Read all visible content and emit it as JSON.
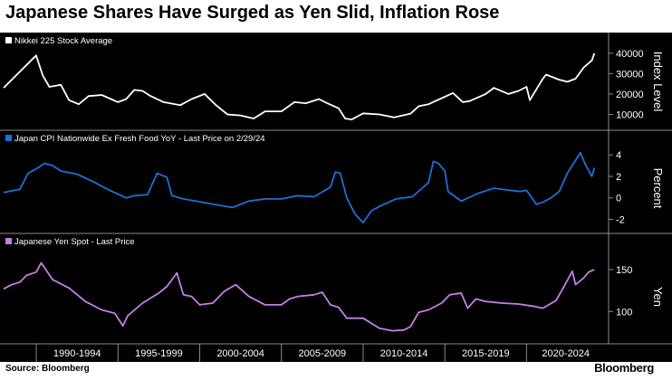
{
  "title": "Japanese Shares Have Surged as Yen Slid, Inflation Rose",
  "source": "Source: Bloomberg",
  "brand": "Bloomberg",
  "colors": {
    "background": "#000000",
    "nikkei": "#ffffff",
    "cpi": "#1f6fd6",
    "yen": "#c77de8",
    "text": "#ffffff",
    "divider": "#8a8a8a"
  },
  "chart_data": [
    {
      "type": "line",
      "legend": "Nikkei 225 Stock Average",
      "ylabel": "Index Level",
      "yticks": [
        10000,
        20000,
        30000,
        40000
      ],
      "ylim": [
        4000,
        43000
      ],
      "x": [
        1988.0,
        1989.0,
        1989.99,
        1990.4,
        1990.8,
        1991.5,
        1992.0,
        1992.6,
        1993.2,
        1994.0,
        1995.0,
        1995.5,
        1996.0,
        1996.5,
        1997.0,
        1997.8,
        1998.8,
        1999.5,
        2000.3,
        2001.0,
        2001.7,
        2002.5,
        2003.3,
        2004.0,
        2005.0,
        2005.8,
        2006.5,
        2007.3,
        2007.8,
        2008.5,
        2008.9,
        2009.3,
        2010.0,
        2011.0,
        2011.9,
        2012.9,
        2013.4,
        2014.0,
        2015.5,
        2016.1,
        2016.5,
        2017.5,
        2018.0,
        2018.9,
        2019.5,
        2020.0,
        2020.2,
        2021.0,
        2021.2,
        2022.0,
        2022.5,
        2023.0,
        2023.5,
        2024.0,
        2024.15
      ],
      "y": [
        23000,
        31000,
        38900,
        29000,
        23500,
        24500,
        17000,
        15000,
        19000,
        19500,
        16000,
        17500,
        22000,
        21500,
        19000,
        16000,
        14500,
        17500,
        20000,
        14500,
        10000,
        9500,
        8000,
        11500,
        11500,
        16000,
        15500,
        17500,
        15500,
        13000,
        8000,
        7500,
        10500,
        10000,
        8500,
        10400,
        14000,
        15000,
        20500,
        16000,
        16500,
        20000,
        23000,
        20000,
        21500,
        23500,
        17000,
        27500,
        29500,
        27000,
        26000,
        27500,
        33000,
        36500,
        40000
      ]
    },
    {
      "type": "line",
      "legend": "Japan CPI Nationwide Ex Fresh Food YoY - Last Price on 2/29/24",
      "ylabel": "Percent",
      "yticks": [
        -2,
        0,
        2,
        4
      ],
      "ylim": [
        -2.8,
        4.6
      ],
      "x": [
        1988.0,
        1989.0,
        1989.5,
        1990.0,
        1990.5,
        1991.0,
        1991.5,
        1992.5,
        1993.5,
        1994.5,
        1995.5,
        1996.0,
        1996.8,
        1997.4,
        1998.0,
        1998.3,
        1999.0,
        2000.5,
        2002.0,
        2003.0,
        2004.0,
        2005.0,
        2006.0,
        2007.0,
        2008.0,
        2008.3,
        2008.6,
        2009.0,
        2009.5,
        2010.0,
        2010.5,
        2011.0,
        2012.0,
        2013.0,
        2014.0,
        2014.3,
        2014.6,
        2015.0,
        2015.2,
        2016.0,
        2017.0,
        2018.0,
        2019.0,
        2019.6,
        2020.0,
        2020.6,
        2021.0,
        2021.5,
        2022.0,
        2022.5,
        2023.0,
        2023.3,
        2023.6,
        2024.0,
        2024.15
      ],
      "y": [
        0.5,
        0.8,
        2.3,
        2.7,
        3.2,
        3.0,
        2.5,
        2.2,
        1.5,
        0.7,
        0.0,
        0.2,
        0.3,
        2.3,
        1.9,
        0.2,
        -0.1,
        -0.5,
        -0.9,
        -0.3,
        -0.1,
        -0.1,
        0.2,
        0.1,
        1.0,
        2.4,
        2.3,
        0.0,
        -1.5,
        -2.3,
        -1.2,
        -0.8,
        -0.1,
        0.1,
        1.4,
        3.4,
        3.2,
        2.5,
        0.6,
        -0.3,
        0.4,
        0.9,
        0.7,
        0.6,
        0.7,
        -0.6,
        -0.4,
        0.0,
        0.6,
        2.3,
        3.5,
        4.2,
        3.1,
        2.0,
        2.8
      ]
    },
    {
      "type": "line",
      "legend": "Japanese Yen Spot - Last Price",
      "ylabel": "Yen",
      "yticks": [
        100,
        150
      ],
      "ylim": [
        68,
        165
      ],
      "x": [
        1988.0,
        1988.5,
        1989.0,
        1989.4,
        1990.0,
        1990.3,
        1991.0,
        1992.0,
        1993.0,
        1994.0,
        1994.8,
        1995.3,
        1995.6,
        1996.5,
        1997.5,
        1998.0,
        1998.6,
        1999.0,
        1999.5,
        2000.0,
        2000.8,
        2001.5,
        2002.2,
        2003.0,
        2004.0,
        2005.0,
        2005.5,
        2006.0,
        2007.0,
        2007.5,
        2008.0,
        2008.5,
        2009.0,
        2010.0,
        2011.0,
        2011.8,
        2012.5,
        2012.9,
        2013.4,
        2014.0,
        2014.8,
        2015.3,
        2016.0,
        2016.4,
        2016.9,
        2017.5,
        2018.5,
        2019.5,
        2020.5,
        2021.0,
        2021.8,
        2022.3,
        2022.8,
        2023.0,
        2023.5,
        2023.8,
        2024.15
      ],
      "y": [
        127,
        132,
        135,
        143,
        147,
        158,
        138,
        128,
        112,
        102,
        98,
        83,
        95,
        110,
        122,
        130,
        146,
        120,
        118,
        108,
        110,
        124,
        132,
        118,
        108,
        108,
        115,
        118,
        120,
        123,
        108,
        105,
        92,
        92,
        80,
        77,
        78,
        82,
        99,
        102,
        110,
        120,
        122,
        104,
        115,
        112,
        110,
        109,
        106,
        104,
        113,
        130,
        148,
        132,
        140,
        147,
        150
      ]
    }
  ],
  "x_axis": {
    "labels": [
      "1990-1994",
      "1995-1999",
      "2000-2004",
      "2005-2009",
      "2010-2014",
      "2015-2019",
      "2020-2024"
    ],
    "range": [
      1988,
      2024.8
    ]
  }
}
